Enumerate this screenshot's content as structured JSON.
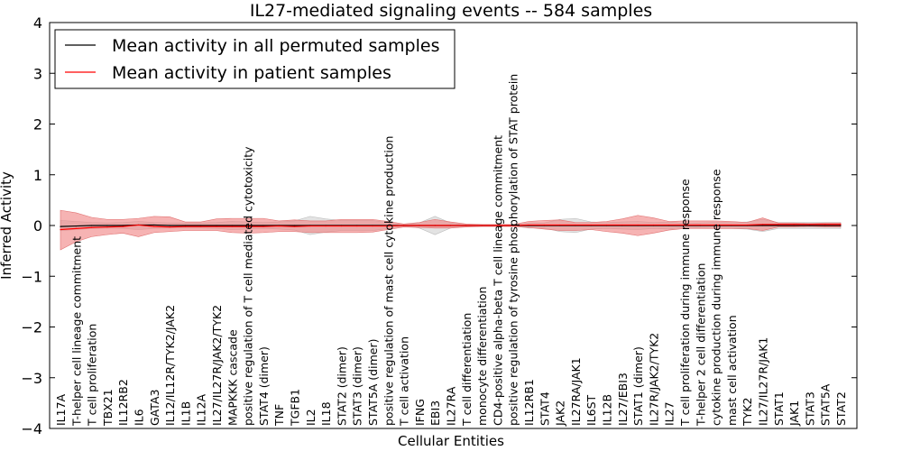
{
  "chart_data": {
    "type": "line",
    "title": "IL27-mediated signaling events -- 584 samples",
    "xlabel": "Cellular Entities",
    "ylabel": "Inferred Activity",
    "ylim": [
      -4,
      4
    ],
    "yticks": [
      "−4",
      "−3",
      "−2",
      "−1",
      "0",
      "1",
      "2",
      "3",
      "4"
    ],
    "yticks_values": [
      -4,
      -3,
      -2,
      -1,
      0,
      1,
      2,
      3,
      4
    ],
    "grid": false,
    "legend_position": "top-left",
    "categories": [
      "IL17A",
      "T-helper cell lineage commitment",
      "T cell proliferation",
      "TBX21",
      "IL12RB2",
      "IL6",
      "GATA3",
      "IL12/IL12R/TYK2/JAK2",
      "IL1B",
      "IL12A",
      "IL27/IL27R/JAK2/TYK2",
      "MAPKKK cascade",
      "positive regulation of T cell mediated cytotoxicity",
      "STAT4 (dimer)",
      "TNF",
      "TGFB1",
      "IL2",
      "IL18",
      "STAT2 (dimer)",
      "STAT3 (dimer)",
      "STAT5A (dimer)",
      "positive regulation of mast cell cytokine production",
      "T cell activation",
      "IFNG",
      "EBI3",
      "IL27RA",
      "T cell differentiation",
      "monocyte differentiation",
      "CD4-positive alpha-beta T cell lineage commitment",
      "positive regulation of tyrosine phosphorylation of STAT protein",
      "IL12RB1",
      "STAT4",
      "JAK2",
      "IL27RA/JAK1",
      "IL6ST",
      "IL12B",
      "IL27/EBI3",
      "STAT1 (dimer)",
      "IL27R/JAK2/TYK2",
      "IL27",
      "T cell proliferation during immune response",
      "T-helper 2 cell differentiation",
      "cytokine production during immune response",
      "mast cell activation",
      "TYK2",
      "IL27/IL27R/JAK1",
      "STAT1",
      "JAK1",
      "STAT3",
      "STAT5A",
      "STAT2"
    ],
    "series": [
      {
        "name": "Mean activity in all permuted samples",
        "color": "#000000",
        "values": [
          -0.02,
          -0.01,
          0.0,
          0.0,
          0.0,
          0.01,
          0.01,
          0.0,
          0.0,
          0.0,
          0.0,
          0.0,
          0.0,
          0.0,
          0.0,
          0.0,
          0.0,
          0.0,
          0.0,
          0.0,
          0.0,
          0.0,
          0.0,
          0.0,
          0.0,
          0.0,
          0.0,
          0.0,
          0.0,
          0.0,
          0.0,
          0.0,
          0.0,
          0.0,
          0.0,
          0.0,
          0.0,
          0.0,
          0.0,
          0.0,
          0.0,
          0.0,
          0.0,
          0.0,
          0.0,
          0.0,
          0.0,
          0.0,
          0.0,
          0.0,
          0.0
        ],
        "band_low": [
          -0.1,
          -0.08,
          -0.06,
          -0.05,
          -0.06,
          -0.08,
          -0.06,
          -0.05,
          -0.05,
          -0.05,
          -0.06,
          -0.08,
          -0.07,
          -0.06,
          -0.07,
          -0.09,
          -0.18,
          -0.13,
          -0.1,
          -0.1,
          -0.1,
          -0.06,
          -0.01,
          -0.05,
          -0.18,
          -0.05,
          -0.01,
          -0.01,
          -0.01,
          -0.01,
          -0.05,
          -0.05,
          -0.12,
          -0.14,
          -0.07,
          -0.06,
          -0.07,
          -0.08,
          -0.06,
          -0.07,
          -0.04,
          -0.05,
          -0.06,
          -0.06,
          -0.07,
          -0.12,
          -0.06,
          -0.06,
          -0.06,
          -0.06,
          -0.06
        ],
        "band_high": [
          0.1,
          0.08,
          0.06,
          0.05,
          0.06,
          0.08,
          0.06,
          0.05,
          0.05,
          0.05,
          0.06,
          0.08,
          0.07,
          0.06,
          0.07,
          0.09,
          0.18,
          0.13,
          0.1,
          0.1,
          0.1,
          0.06,
          0.01,
          0.05,
          0.18,
          0.05,
          0.01,
          0.01,
          0.01,
          0.01,
          0.05,
          0.05,
          0.12,
          0.14,
          0.07,
          0.06,
          0.07,
          0.08,
          0.06,
          0.07,
          0.04,
          0.05,
          0.06,
          0.06,
          0.07,
          0.12,
          0.06,
          0.06,
          0.06,
          0.06,
          0.06
        ]
      },
      {
        "name": "Mean activity in patient samples",
        "color": "#ff0000",
        "values": [
          -0.08,
          -0.06,
          -0.04,
          -0.03,
          -0.02,
          0.01,
          -0.02,
          -0.03,
          -0.02,
          -0.02,
          -0.02,
          -0.02,
          -0.02,
          -0.02,
          -0.01,
          -0.02,
          -0.01,
          -0.01,
          -0.01,
          -0.01,
          -0.01,
          -0.01,
          0.0,
          0.0,
          0.0,
          0.0,
          0.0,
          0.0,
          0.0,
          0.0,
          0.01,
          0.01,
          0.01,
          0.01,
          0.01,
          0.01,
          0.01,
          0.01,
          0.01,
          0.01,
          0.01,
          0.01,
          0.01,
          0.01,
          0.01,
          0.02,
          0.02,
          0.02,
          0.02,
          0.02,
          0.02
        ],
        "band_low": [
          -0.48,
          -0.32,
          -0.22,
          -0.18,
          -0.15,
          -0.22,
          -0.14,
          -0.12,
          -0.1,
          -0.1,
          -0.1,
          -0.14,
          -0.15,
          -0.14,
          -0.12,
          -0.12,
          -0.14,
          -0.14,
          -0.14,
          -0.14,
          -0.13,
          -0.08,
          -0.03,
          -0.04,
          -0.05,
          -0.05,
          -0.03,
          -0.02,
          -0.02,
          -0.02,
          -0.04,
          -0.07,
          -0.1,
          -0.1,
          -0.08,
          -0.12,
          -0.15,
          -0.2,
          -0.15,
          -0.09,
          -0.06,
          -0.06,
          -0.06,
          -0.06,
          -0.06,
          -0.1,
          -0.03,
          -0.03,
          -0.02,
          -0.03,
          -0.03
        ],
        "band_high": [
          0.3,
          0.25,
          0.16,
          0.12,
          0.12,
          0.14,
          0.18,
          0.17,
          0.07,
          0.07,
          0.13,
          0.14,
          0.14,
          0.14,
          0.09,
          0.11,
          0.09,
          0.09,
          0.12,
          0.12,
          0.12,
          0.08,
          0.03,
          0.06,
          0.12,
          0.07,
          0.03,
          0.02,
          0.02,
          0.02,
          0.08,
          0.1,
          0.11,
          0.06,
          0.06,
          0.08,
          0.13,
          0.2,
          0.15,
          0.08,
          0.09,
          0.09,
          0.09,
          0.08,
          0.06,
          0.15,
          0.05,
          0.05,
          0.04,
          0.05,
          0.05
        ]
      }
    ]
  }
}
